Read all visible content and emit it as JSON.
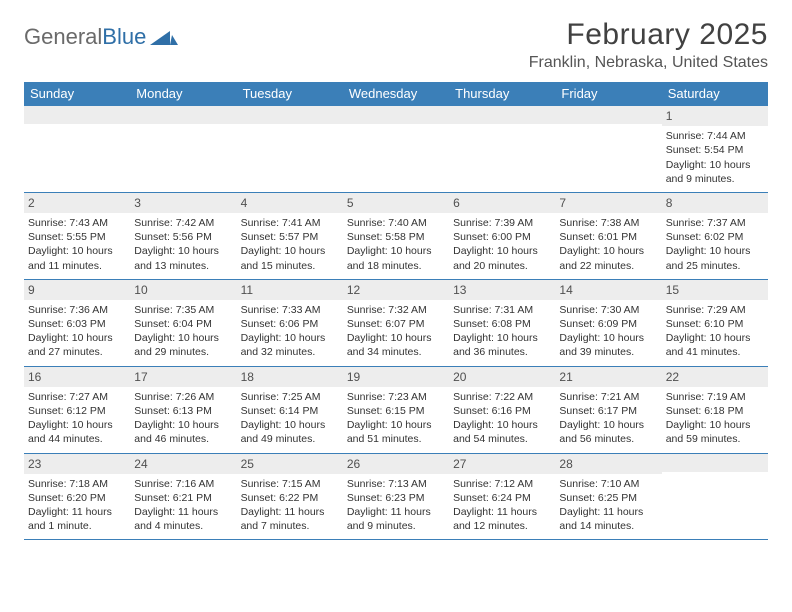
{
  "brand": {
    "text1": "General",
    "text2": "Blue"
  },
  "title": "February 2025",
  "location": "Franklin, Nebraska, United States",
  "colors": {
    "header_bar": "#3b7fb8",
    "daynum_bg": "#ededed",
    "text": "#333333",
    "title_text": "#414141",
    "brand_gray": "#6a6a6a",
    "brand_blue": "#2f6fa7",
    "row_border": "#3b7fb8",
    "background": "#ffffff"
  },
  "typography": {
    "title_fontsize": 30,
    "location_fontsize": 16,
    "weekday_fontsize": 13,
    "daynum_fontsize": 12,
    "body_fontsize": 10.5
  },
  "weekdays": [
    "Sunday",
    "Monday",
    "Tuesday",
    "Wednesday",
    "Thursday",
    "Friday",
    "Saturday"
  ],
  "weeks": [
    [
      {
        "day": "",
        "lines": []
      },
      {
        "day": "",
        "lines": []
      },
      {
        "day": "",
        "lines": []
      },
      {
        "day": "",
        "lines": []
      },
      {
        "day": "",
        "lines": []
      },
      {
        "day": "",
        "lines": []
      },
      {
        "day": "1",
        "lines": [
          "Sunrise: 7:44 AM",
          "Sunset: 5:54 PM",
          "Daylight: 10 hours and 9 minutes."
        ]
      }
    ],
    [
      {
        "day": "2",
        "lines": [
          "Sunrise: 7:43 AM",
          "Sunset: 5:55 PM",
          "Daylight: 10 hours and 11 minutes."
        ]
      },
      {
        "day": "3",
        "lines": [
          "Sunrise: 7:42 AM",
          "Sunset: 5:56 PM",
          "Daylight: 10 hours and 13 minutes."
        ]
      },
      {
        "day": "4",
        "lines": [
          "Sunrise: 7:41 AM",
          "Sunset: 5:57 PM",
          "Daylight: 10 hours and 15 minutes."
        ]
      },
      {
        "day": "5",
        "lines": [
          "Sunrise: 7:40 AM",
          "Sunset: 5:58 PM",
          "Daylight: 10 hours and 18 minutes."
        ]
      },
      {
        "day": "6",
        "lines": [
          "Sunrise: 7:39 AM",
          "Sunset: 6:00 PM",
          "Daylight: 10 hours and 20 minutes."
        ]
      },
      {
        "day": "7",
        "lines": [
          "Sunrise: 7:38 AM",
          "Sunset: 6:01 PM",
          "Daylight: 10 hours and 22 minutes."
        ]
      },
      {
        "day": "8",
        "lines": [
          "Sunrise: 7:37 AM",
          "Sunset: 6:02 PM",
          "Daylight: 10 hours and 25 minutes."
        ]
      }
    ],
    [
      {
        "day": "9",
        "lines": [
          "Sunrise: 7:36 AM",
          "Sunset: 6:03 PM",
          "Daylight: 10 hours and 27 minutes."
        ]
      },
      {
        "day": "10",
        "lines": [
          "Sunrise: 7:35 AM",
          "Sunset: 6:04 PM",
          "Daylight: 10 hours and 29 minutes."
        ]
      },
      {
        "day": "11",
        "lines": [
          "Sunrise: 7:33 AM",
          "Sunset: 6:06 PM",
          "Daylight: 10 hours and 32 minutes."
        ]
      },
      {
        "day": "12",
        "lines": [
          "Sunrise: 7:32 AM",
          "Sunset: 6:07 PM",
          "Daylight: 10 hours and 34 minutes."
        ]
      },
      {
        "day": "13",
        "lines": [
          "Sunrise: 7:31 AM",
          "Sunset: 6:08 PM",
          "Daylight: 10 hours and 36 minutes."
        ]
      },
      {
        "day": "14",
        "lines": [
          "Sunrise: 7:30 AM",
          "Sunset: 6:09 PM",
          "Daylight: 10 hours and 39 minutes."
        ]
      },
      {
        "day": "15",
        "lines": [
          "Sunrise: 7:29 AM",
          "Sunset: 6:10 PM",
          "Daylight: 10 hours and 41 minutes."
        ]
      }
    ],
    [
      {
        "day": "16",
        "lines": [
          "Sunrise: 7:27 AM",
          "Sunset: 6:12 PM",
          "Daylight: 10 hours and 44 minutes."
        ]
      },
      {
        "day": "17",
        "lines": [
          "Sunrise: 7:26 AM",
          "Sunset: 6:13 PM",
          "Daylight: 10 hours and 46 minutes."
        ]
      },
      {
        "day": "18",
        "lines": [
          "Sunrise: 7:25 AM",
          "Sunset: 6:14 PM",
          "Daylight: 10 hours and 49 minutes."
        ]
      },
      {
        "day": "19",
        "lines": [
          "Sunrise: 7:23 AM",
          "Sunset: 6:15 PM",
          "Daylight: 10 hours and 51 minutes."
        ]
      },
      {
        "day": "20",
        "lines": [
          "Sunrise: 7:22 AM",
          "Sunset: 6:16 PM",
          "Daylight: 10 hours and 54 minutes."
        ]
      },
      {
        "day": "21",
        "lines": [
          "Sunrise: 7:21 AM",
          "Sunset: 6:17 PM",
          "Daylight: 10 hours and 56 minutes."
        ]
      },
      {
        "day": "22",
        "lines": [
          "Sunrise: 7:19 AM",
          "Sunset: 6:18 PM",
          "Daylight: 10 hours and 59 minutes."
        ]
      }
    ],
    [
      {
        "day": "23",
        "lines": [
          "Sunrise: 7:18 AM",
          "Sunset: 6:20 PM",
          "Daylight: 11 hours and 1 minute."
        ]
      },
      {
        "day": "24",
        "lines": [
          "Sunrise: 7:16 AM",
          "Sunset: 6:21 PM",
          "Daylight: 11 hours and 4 minutes."
        ]
      },
      {
        "day": "25",
        "lines": [
          "Sunrise: 7:15 AM",
          "Sunset: 6:22 PM",
          "Daylight: 11 hours and 7 minutes."
        ]
      },
      {
        "day": "26",
        "lines": [
          "Sunrise: 7:13 AM",
          "Sunset: 6:23 PM",
          "Daylight: 11 hours and 9 minutes."
        ]
      },
      {
        "day": "27",
        "lines": [
          "Sunrise: 7:12 AM",
          "Sunset: 6:24 PM",
          "Daylight: 11 hours and 12 minutes."
        ]
      },
      {
        "day": "28",
        "lines": [
          "Sunrise: 7:10 AM",
          "Sunset: 6:25 PM",
          "Daylight: 11 hours and 14 minutes."
        ]
      },
      {
        "day": "",
        "lines": []
      }
    ]
  ]
}
